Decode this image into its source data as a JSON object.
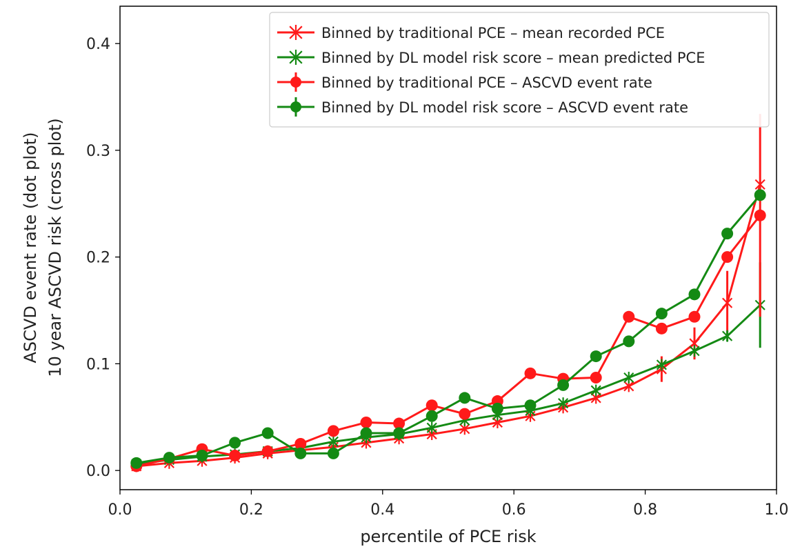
{
  "chart_data": {
    "type": "line",
    "title": "",
    "xlabel": "percentile of PCE risk",
    "ylabel_lines": [
      "ASCVD event rate (dot plot)",
      "10 year ASCVD risk (cross plot)"
    ],
    "xlim": [
      0.0,
      1.0
    ],
    "ylim": [
      -0.018,
      0.435
    ],
    "x_ticks": [
      0.0,
      0.2,
      0.4,
      0.6,
      0.8,
      1.0
    ],
    "x_tick_labels": [
      "0.0",
      "0.2",
      "0.4",
      "0.6",
      "0.8",
      "1.0"
    ],
    "y_ticks": [
      0.0,
      0.1,
      0.2,
      0.3,
      0.4
    ],
    "y_tick_labels": [
      "0.0",
      "0.1",
      "0.2",
      "0.3",
      "0.4"
    ],
    "grid": false,
    "legend_position": "top-right",
    "x": [
      0.025,
      0.075,
      0.125,
      0.175,
      0.225,
      0.275,
      0.325,
      0.375,
      0.425,
      0.475,
      0.525,
      0.575,
      0.625,
      0.675,
      0.725,
      0.775,
      0.825,
      0.875,
      0.925,
      0.975
    ],
    "series": [
      {
        "name": "Binned by traditional PCE – mean recorded PCE",
        "marker": "cross",
        "color": "#ff1a1a",
        "values": [
          0.004,
          0.007,
          0.009,
          0.012,
          0.016,
          0.019,
          0.022,
          0.026,
          0.03,
          0.034,
          0.039,
          0.045,
          0.051,
          0.059,
          0.068,
          0.079,
          0.095,
          0.119,
          0.157,
          0.268
        ],
        "errors": [
          0,
          0,
          0,
          0,
          0,
          0,
          0,
          0,
          0,
          0,
          0,
          0,
          0,
          0,
          0,
          0,
          0.012,
          0.015,
          0.03,
          0
        ]
      },
      {
        "name": "Binned by DL model risk score – mean predicted PCE",
        "marker": "cross",
        "color": "#148a14",
        "values": [
          0.006,
          0.01,
          0.013,
          0.015,
          0.018,
          0.021,
          0.027,
          0.031,
          0.034,
          0.04,
          0.047,
          0.052,
          0.056,
          0.063,
          0.075,
          0.087,
          0.099,
          0.112,
          0.126,
          0.155
        ],
        "errors": [
          0,
          0,
          0,
          0,
          0,
          0,
          0,
          0,
          0,
          0,
          0,
          0,
          0,
          0,
          0,
          0,
          0,
          0,
          0.005,
          0.04
        ]
      },
      {
        "name": "Binned by traditional PCE –  ASCVD event rate",
        "marker": "dot",
        "color": "#ff1a1a",
        "values": [
          0.004,
          0.011,
          0.02,
          0.014,
          0.018,
          0.025,
          0.037,
          0.045,
          0.044,
          0.061,
          0.053,
          0.065,
          0.091,
          0.086,
          0.087,
          0.144,
          0.133,
          0.144,
          0.2,
          0.239
        ],
        "errors": [
          0,
          0,
          0,
          0,
          0,
          0,
          0,
          0,
          0,
          0,
          0,
          0,
          0,
          0,
          0,
          0,
          0,
          0,
          0,
          0.095
        ]
      },
      {
        "name": "Binned by DL model risk score – ASCVD event rate",
        "marker": "dot",
        "color": "#148a14",
        "values": [
          0.007,
          0.012,
          0.014,
          0.026,
          0.035,
          0.016,
          0.016,
          0.035,
          0.035,
          0.051,
          0.068,
          0.058,
          0.061,
          0.08,
          0.107,
          0.121,
          0.147,
          0.165,
          0.222,
          0.258
        ],
        "errors": [
          0,
          0,
          0,
          0,
          0,
          0,
          0,
          0,
          0,
          0,
          0,
          0,
          0,
          0,
          0,
          0,
          0,
          0,
          0,
          0
        ]
      }
    ]
  }
}
